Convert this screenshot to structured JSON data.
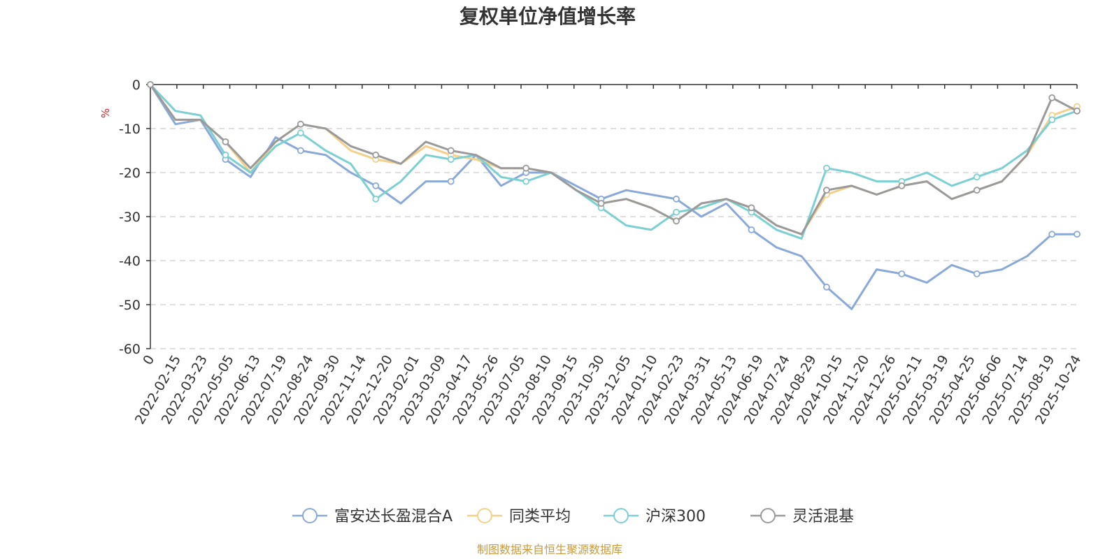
{
  "chart_data": {
    "type": "line",
    "title": "复权单位净值增长率",
    "ylabel": "%",
    "ylim": [
      -60,
      0
    ],
    "yticks": [
      "0",
      "-10",
      "-20",
      "-30",
      "-40",
      "-50",
      "-60"
    ],
    "grid": true,
    "legend_position": "bottom-center",
    "source_note": "制图数据来自恒生聚源数据库",
    "x_tick_labels": [
      "0",
      "2022-02-15",
      "2022-03-23",
      "2022-05-05",
      "2022-06-13",
      "2022-07-19",
      "2022-08-24",
      "2022-09-30",
      "2022-11-14",
      "2022-12-20",
      "2023-02-01",
      "2023-03-09",
      "2023-04-17",
      "2023-05-26",
      "2023-07-05",
      "2023-08-10",
      "2023-09-15",
      "2023-10-30",
      "2023-12-05",
      "2024-01-10",
      "2024-02-23",
      "2024-03-31",
      "2024-05-13",
      "2024-06-19",
      "2024-07-24",
      "2024-08-29",
      "2024-10-15",
      "2024-11-20",
      "2024-12-26",
      "2025-02-11",
      "2025-03-19",
      "2025-04-25",
      "2025-06-06",
      "2025-07-14",
      "2025-08-19",
      "2025-10-24"
    ],
    "series": [
      {
        "name": "富安达长盈混合A",
        "color": "#8aa9d8",
        "values": [
          0,
          -9,
          -8,
          -17,
          -21,
          -12,
          -15,
          -16,
          -20,
          -23,
          -27,
          -22,
          -22,
          -16,
          -23,
          -20,
          -20,
          -23,
          -26,
          -24,
          -25,
          -26,
          -30,
          -27,
          -33,
          -37,
          -39,
          -46,
          -51,
          -42,
          -43,
          -45,
          -41,
          -43,
          -42,
          -39,
          -34,
          -34
        ]
      },
      {
        "name": "同类平均",
        "color": "#f5d08a",
        "values": [
          0,
          -8,
          -8,
          -13,
          -20,
          -13,
          -9,
          -10,
          -15,
          -17,
          -18,
          -14,
          -16,
          -17,
          -19,
          -19,
          -20,
          -24,
          -27,
          -26,
          -28,
          -31,
          -27,
          -26,
          -28,
          -32,
          -34,
          -25,
          -23,
          -25,
          -23,
          -22,
          -26,
          -24,
          -22,
          -16,
          -7,
          -5
        ]
      },
      {
        "name": "沪深300",
        "color": "#7dd0d2",
        "values": [
          0,
          -6,
          -7,
          -16,
          -20,
          -14,
          -11,
          -15,
          -18,
          -26,
          -22,
          -16,
          -17,
          -16,
          -21,
          -22,
          -20,
          -24,
          -28,
          -32,
          -33,
          -29,
          -28,
          -26,
          -29,
          -33,
          -35,
          -19,
          -20,
          -22,
          -22,
          -20,
          -23,
          -21,
          -19,
          -15,
          -8,
          -6
        ]
      },
      {
        "name": "灵活混基",
        "color": "#9a9a9a",
        "values": [
          0,
          -8,
          -8,
          -13,
          -19,
          -13,
          -9,
          -10,
          -14,
          -16,
          -18,
          -13,
          -15,
          -16,
          -19,
          -19,
          -20,
          -24,
          -27,
          -26,
          -28,
          -31,
          -27,
          -26,
          -28,
          -32,
          -34,
          -24,
          -23,
          -25,
          -23,
          -22,
          -26,
          -24,
          -22,
          -16,
          -3,
          -6
        ]
      }
    ]
  }
}
